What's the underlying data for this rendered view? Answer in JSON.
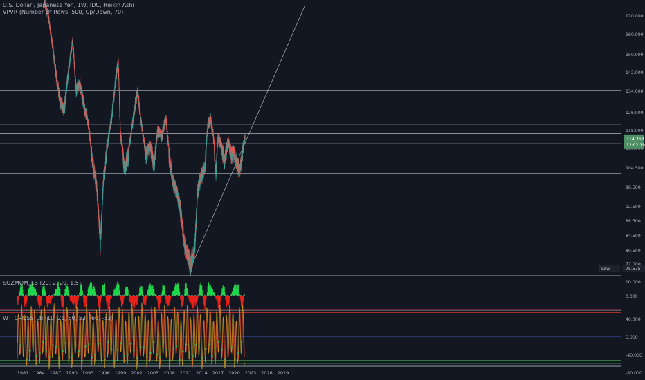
{
  "header": {
    "title": "U.S. Dollar / Japanese Yen, 1W, IDC, Heikin Ashi",
    "vpvr": "VPVR (Number Of Rows, 500, Up/Down, 70)"
  },
  "indicators": {
    "squeeze_label": "SQZMOM_LB (20, 2, 20, 1.5)",
    "wt_label": "WT_CROSS_LB (10, 21, 60, 53, -60, -53)"
  },
  "badges": {
    "price": "114.363",
    "countdown": "12:02:19",
    "low_label": "Low",
    "low_value": "75.575"
  },
  "colors": {
    "background": "#131722",
    "bull": "#26a69a",
    "bear": "#ef5350",
    "price_badge": "#4f8f64",
    "wt_fast": "#d4b01c",
    "wt_slow": "#c23b22",
    "wt_zero": "#3f51b5"
  },
  "chart_data": [
    {
      "type": "candlestick",
      "style": "Heikin Ashi",
      "timeframe": "1W",
      "x_ticks": [
        "1981",
        "1984",
        "1987",
        "1990",
        "1993",
        "1996",
        "1999",
        "2002",
        "2005",
        "2008",
        "2011",
        "2014",
        "2017",
        "2020",
        "2023",
        "2026",
        "2029"
      ],
      "y_ticks": [
        "170.000",
        "160.000",
        "150.000",
        "142.000",
        "134.000",
        "126.000",
        "118.000",
        "110.000",
        "104.500",
        "98.500",
        "92.500",
        "88.500",
        "84.500",
        "80.500",
        "77.000"
      ],
      "horizontal_levels": [
        134.2,
        120.5,
        116.3,
        111.8,
        102.5,
        83.7
      ],
      "trendline": {
        "from": {
          "year": 2011.9,
          "price": 75.6
        },
        "to": {
          "year": 2033,
          "price": 175
        }
      },
      "low": 75.575,
      "last_price": 114.363,
      "close_series": [
        {
          "year": 1985.0,
          "price": 177
        },
        {
          "year": 1985.8,
          "price": 168
        },
        {
          "year": 1986.5,
          "price": 153
        },
        {
          "year": 1987.3,
          "price": 138
        },
        {
          "year": 1987.9,
          "price": 130
        },
        {
          "year": 1988.6,
          "price": 126
        },
        {
          "year": 1989.3,
          "price": 140
        },
        {
          "year": 1990.2,
          "price": 157
        },
        {
          "year": 1990.8,
          "price": 134
        },
        {
          "year": 1991.5,
          "price": 137
        },
        {
          "year": 1992.3,
          "price": 128
        },
        {
          "year": 1993.0,
          "price": 122
        },
        {
          "year": 1993.8,
          "price": 106
        },
        {
          "year": 1994.6,
          "price": 99
        },
        {
          "year": 1995.3,
          "price": 82
        },
        {
          "year": 1995.9,
          "price": 101
        },
        {
          "year": 1996.7,
          "price": 113
        },
        {
          "year": 1997.4,
          "price": 124
        },
        {
          "year": 1998.2,
          "price": 140
        },
        {
          "year": 1998.6,
          "price": 147
        },
        {
          "year": 1999.0,
          "price": 116
        },
        {
          "year": 1999.7,
          "price": 104
        },
        {
          "year": 2000.5,
          "price": 108
        },
        {
          "year": 2001.3,
          "price": 122
        },
        {
          "year": 2002.1,
          "price": 134
        },
        {
          "year": 2002.9,
          "price": 120
        },
        {
          "year": 2003.7,
          "price": 108
        },
        {
          "year": 2004.5,
          "price": 111
        },
        {
          "year": 2005.2,
          "price": 105
        },
        {
          "year": 2005.9,
          "price": 118
        },
        {
          "year": 2006.6,
          "price": 115
        },
        {
          "year": 2007.4,
          "price": 123
        },
        {
          "year": 2008.0,
          "price": 107
        },
        {
          "year": 2008.7,
          "price": 100
        },
        {
          "year": 2009.4,
          "price": 97
        },
        {
          "year": 2010.1,
          "price": 91
        },
        {
          "year": 2010.8,
          "price": 82
        },
        {
          "year": 2011.5,
          "price": 79
        },
        {
          "year": 2011.9,
          "price": 76
        },
        {
          "year": 2012.7,
          "price": 81
        },
        {
          "year": 2013.3,
          "price": 98
        },
        {
          "year": 2014.0,
          "price": 102
        },
        {
          "year": 2014.6,
          "price": 104
        },
        {
          "year": 2015.1,
          "price": 120
        },
        {
          "year": 2015.6,
          "price": 123
        },
        {
          "year": 2016.1,
          "price": 116
        },
        {
          "year": 2016.6,
          "price": 102
        },
        {
          "year": 2017.0,
          "price": 115
        },
        {
          "year": 2017.6,
          "price": 111
        },
        {
          "year": 2018.2,
          "price": 106
        },
        {
          "year": 2018.9,
          "price": 113
        },
        {
          "year": 2019.4,
          "price": 108
        },
        {
          "year": 2019.9,
          "price": 109
        },
        {
          "year": 2020.5,
          "price": 106
        },
        {
          "year": 2021.0,
          "price": 103
        },
        {
          "year": 2021.6,
          "price": 110
        },
        {
          "year": 2022.0,
          "price": 114.4
        }
      ]
    },
    {
      "type": "histogram",
      "name": "SQZMOM_LB",
      "y_ticks": [
        "10.000",
        "0.000"
      ],
      "x_range": [
        1980,
        2021.9
      ],
      "cycle_years": 2.2
    },
    {
      "type": "line",
      "name": "WT_CROSS_LB",
      "y_ticks": [
        "40.000",
        "0.000",
        "-40.000",
        "-80.000"
      ],
      "levels": [
        60,
        53,
        0,
        -53,
        -60
      ],
      "x_range": [
        1980,
        2021.9
      ],
      "cycle_years": 0.6
    }
  ]
}
